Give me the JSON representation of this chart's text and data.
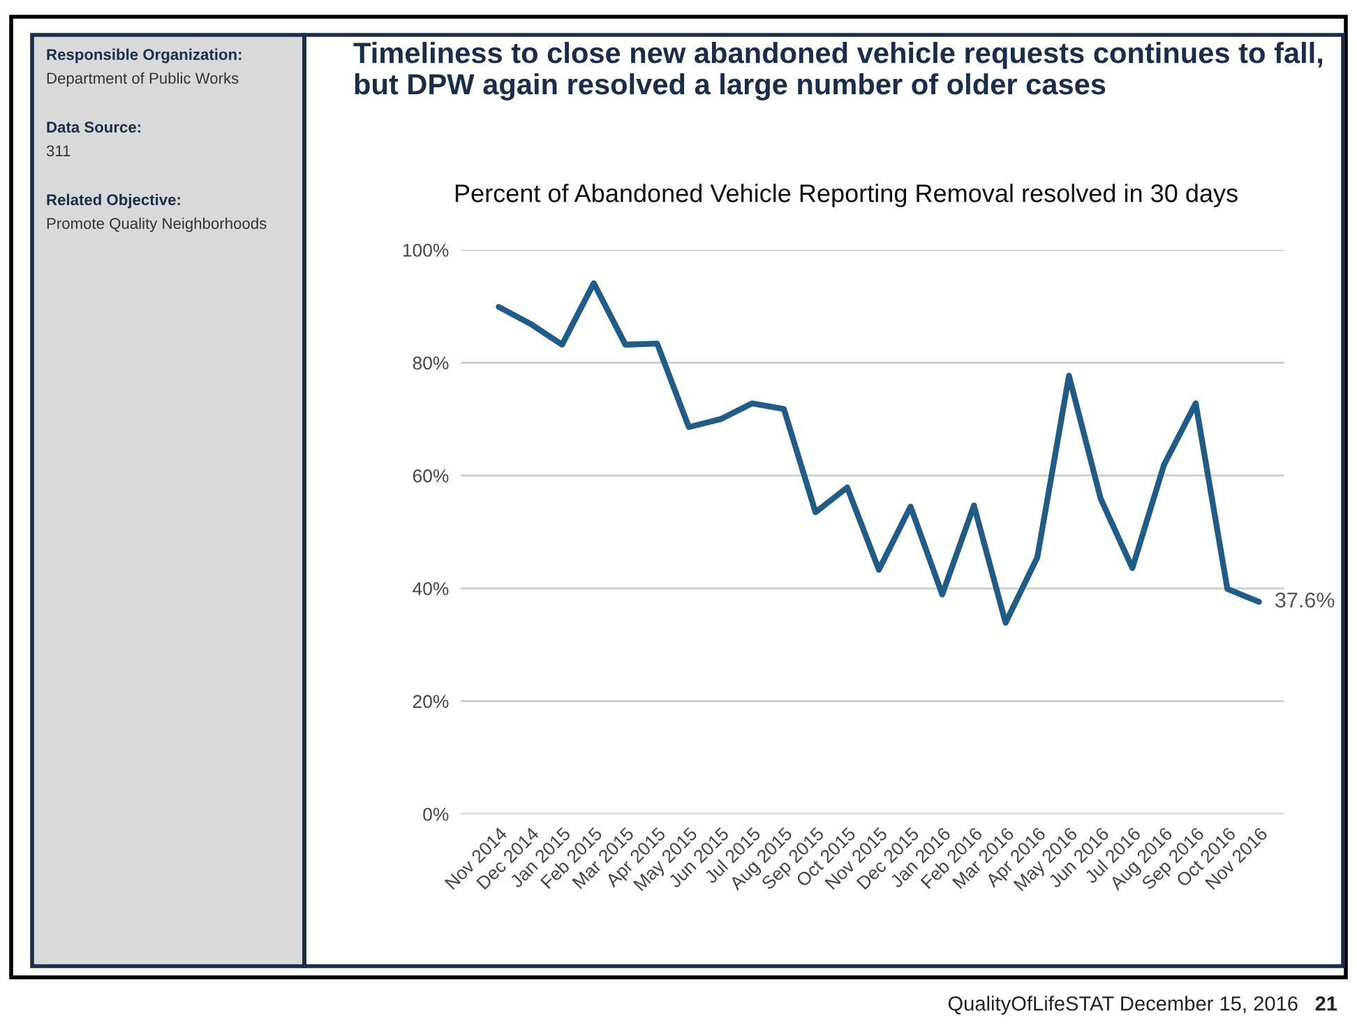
{
  "chart_data": {
    "type": "line",
    "title": "Timeliness to close new abandoned vehicle requests continues to fall, but DPW again resolved a large number of older cases",
    "subtitle": "Percent of Abandoned Vehicle Reporting Removal resolved in 30 days",
    "categories": [
      "Nov 2014",
      "Dec 2014",
      "Jan 2015",
      "Feb 2015",
      "Mar 2015",
      "Apr 2015",
      "May 2015",
      "Jun 2015",
      "Jul 2015",
      "Aug 2015",
      "Sep 2015",
      "Oct 2015",
      "Nov 2015",
      "Dec 2015",
      "Jan 2016",
      "Feb 2016",
      "Mar 2016",
      "Apr 2016",
      "May 2016",
      "Jun 2016",
      "Jul 2016",
      "Aug 2016",
      "Sep 2016",
      "Oct 2016",
      "Nov 2016"
    ],
    "series": [
      {
        "color": "#1f5c87",
        "values": [
          89.9,
          86.9,
          83.2,
          94.1,
          83.2,
          83.4,
          68.6,
          70.0,
          72.8,
          71.8,
          53.5,
          57.9,
          43.3,
          54.5,
          38.9,
          54.7,
          33.9,
          45.5,
          77.7,
          55.9,
          43.6,
          61.9,
          72.8,
          39.9,
          37.6
        ],
        "value_labels": [
          null,
          null,
          null,
          null,
          null,
          null,
          null,
          null,
          null,
          null,
          null,
          null,
          null,
          null,
          null,
          null,
          null,
          null,
          null,
          null,
          null,
          null,
          null,
          null,
          "37.6%"
        ]
      }
    ],
    "ylim": [
      0,
      100
    ],
    "yticks": [
      {
        "value": 0,
        "label": "0%"
      },
      {
        "value": 20,
        "label": "20%"
      },
      {
        "value": 40,
        "label": "40%"
      },
      {
        "value": 60,
        "label": "60%"
      },
      {
        "value": 80,
        "label": "80%"
      },
      {
        "value": 100,
        "label": "100%"
      }
    ],
    "grid": "y",
    "marker": "none",
    "line_style": "solid",
    "legend": false,
    "annotations": [
      "Responsible Organization:",
      "Department of Public Works",
      "Data Source:",
      "311",
      "Related Objective:",
      "Promote Quality Neighborhoods",
      "QualityOfLifeSTAT December 15, 2016",
      "21"
    ]
  }
}
